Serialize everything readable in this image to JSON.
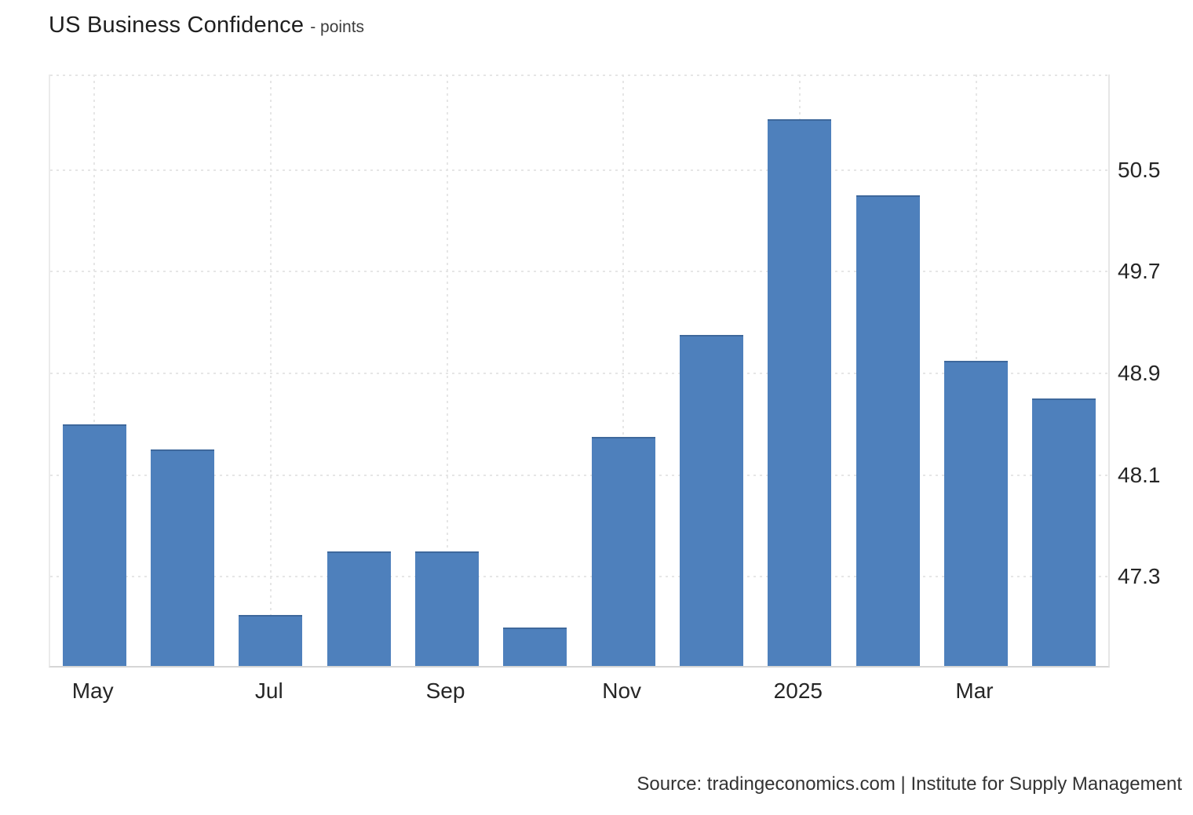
{
  "header": {
    "title": "US Business Confidence",
    "subtitle": "- points"
  },
  "footer": {
    "source": "Source: tradingeconomics.com | Institute for Supply Management"
  },
  "chart_data": {
    "type": "bar",
    "title": "US Business Confidence",
    "unit": "points",
    "categories": [
      "May 2024",
      "Jun 2024",
      "Jul 2024",
      "Aug 2024",
      "Sep 2024",
      "Oct 2024",
      "Nov 2024",
      "Dec 2024",
      "Jan 2025",
      "Feb 2025",
      "Mar 2025",
      "Apr 2025"
    ],
    "values": [
      48.5,
      48.3,
      47.0,
      47.5,
      47.5,
      46.9,
      48.4,
      49.2,
      50.9,
      50.3,
      49.0,
      48.7
    ],
    "x_tick_labels": [
      "May",
      "Jul",
      "Sep",
      "Nov",
      "2025",
      "Mar"
    ],
    "x_tick_indices": [
      0,
      2,
      4,
      6,
      8,
      10
    ],
    "y_ticks": [
      47.3,
      48.1,
      48.9,
      49.7,
      50.5
    ],
    "ylim": [
      46.6,
      51.25
    ],
    "grid": true,
    "legend_position": "none",
    "bar_color": "#4e80bc",
    "bar_top_color": "#3e689c",
    "grid_color": "#e6e6e6"
  }
}
